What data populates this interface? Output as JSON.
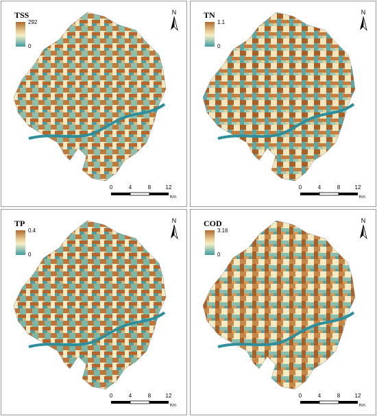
{
  "panels": [
    {
      "label": "TSS",
      "legend_max": "292",
      "legend_min": "0"
    },
    {
      "label": "TN",
      "legend_max": "1.1",
      "legend_min": "0"
    },
    {
      "label": "TP",
      "legend_max": "0.4",
      "legend_min": "0"
    },
    {
      "label": "COD",
      "legend_max": "3.16",
      "legend_min": "0"
    }
  ],
  "north_label": "N",
  "scale": {
    "ticks": [
      "0",
      "4",
      "8",
      "12"
    ],
    "unit": "Km"
  },
  "colors": {
    "high": "#b0692c",
    "mid": "#f6eec6",
    "low": "#3f9aa0",
    "river": "#2e8f9c"
  }
}
